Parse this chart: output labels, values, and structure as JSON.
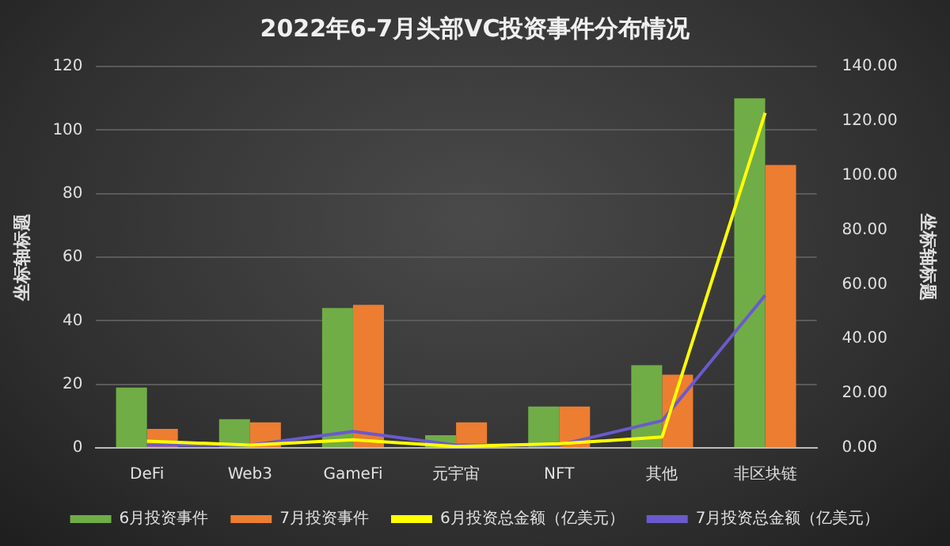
{
  "chart_data": {
    "type": "bar",
    "title": "2022年6-7月头部VC投资事件分布情况",
    "ylabel": "坐标轴标题",
    "y2label": "坐标轴标题",
    "categories": [
      "DeFi",
      "Web3",
      "GameFi",
      "元宇宙",
      "NFT",
      "其他",
      "非区块链"
    ],
    "series": [
      {
        "name": "6月投资事件",
        "color": "#70ad47",
        "values": [
          19,
          9,
          44,
          4,
          13,
          26,
          110
        ]
      },
      {
        "name": "7月投资事件",
        "color": "#ed7d31",
        "values": [
          6,
          8,
          45,
          8,
          13,
          23,
          89
        ]
      },
      {
        "name": "6月投资总金额（亿美元）",
        "type": "line",
        "axis": "y2",
        "color": "#ffff00",
        "values": [
          2.5,
          1,
          3,
          0.5,
          1.5,
          4,
          123
        ]
      },
      {
        "name": "7月投资总金额（亿美元）",
        "type": "line",
        "axis": "y2",
        "color": "#6a5acd",
        "values": [
          1,
          1,
          6,
          1,
          1,
          10,
          56
        ]
      }
    ],
    "ylim": [
      0,
      120
    ],
    "yticks": [
      0,
      20,
      40,
      60,
      80,
      100,
      120
    ],
    "y2lim": [
      0,
      140
    ],
    "y2ticks": [
      {
        "value": 0,
        "label": "0.00"
      },
      {
        "value": 20,
        "label": "20.00"
      },
      {
        "value": 40,
        "label": "40.00"
      },
      {
        "value": 60,
        "label": "60.00"
      },
      {
        "value": 80,
        "label": "80.00"
      },
      {
        "value": 100,
        "label": "100.00"
      },
      {
        "value": 120,
        "label": "120.00"
      },
      {
        "value": 140,
        "label": "140.00"
      }
    ],
    "grid": "y",
    "legend": "bottom",
    "marker": "none",
    "line_style": "solid"
  }
}
